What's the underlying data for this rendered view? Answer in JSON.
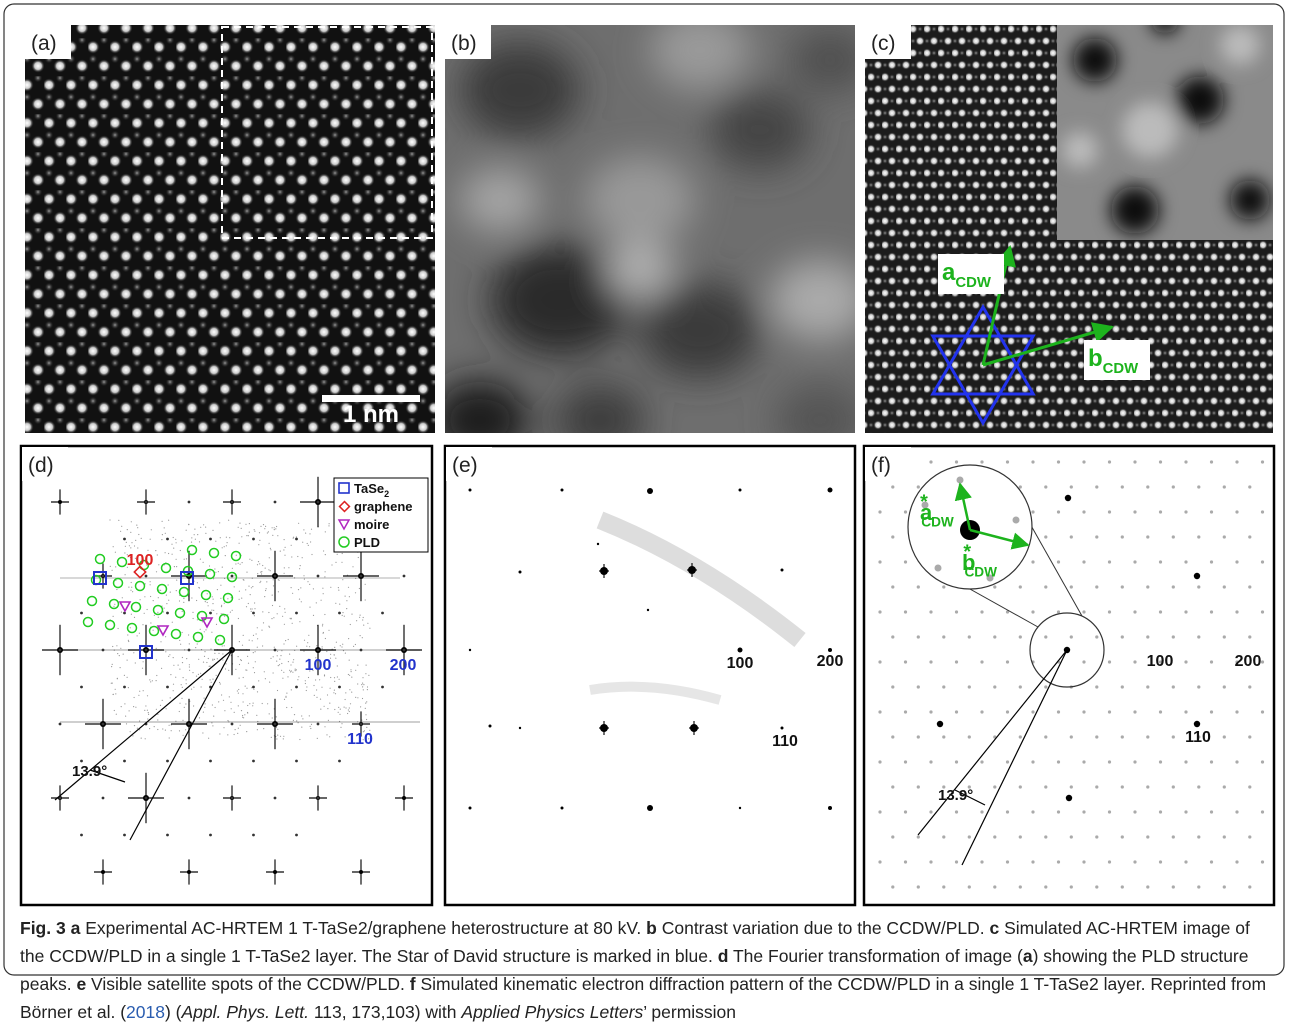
{
  "panels": {
    "a": {
      "label": "(a)",
      "scale_bar": "1 nm"
    },
    "b": {
      "label": "(b)"
    },
    "c": {
      "label": "(c)",
      "vector_a": {
        "main": "a",
        "sub": "CDW"
      },
      "vector_b": {
        "main": "b",
        "sub": "CDW"
      }
    },
    "d": {
      "label": "(d)",
      "legend": [
        {
          "name": "TaSe",
          "sub": "2"
        },
        {
          "name": "graphene"
        },
        {
          "name": "moire"
        },
        {
          "name": "PLD"
        }
      ],
      "graphene_index": "100",
      "indices": [
        "100",
        "200",
        "110"
      ],
      "angle": "13.9°"
    },
    "e": {
      "label": "(e)",
      "indices": [
        "100",
        "200",
        "110"
      ]
    },
    "f": {
      "label": "(f)",
      "vector_a": {
        "main": "a",
        "sup": "*",
        "sub": "CDW"
      },
      "vector_b": {
        "main": "b",
        "sup": "*",
        "sub": "CDW"
      },
      "indices": [
        "100",
        "200",
        "110"
      ],
      "angle": "13.9°"
    }
  },
  "caption": [
    "Fig. 3",
    "a",
    "Experimental AC-HRTEM 1 T-TaSe2/graphene heterostructure at 80 kV.",
    "b",
    "Contrast variation due to the CCDW/PLD.",
    "c",
    "Simulated AC-HRTEM image of the CCDW/PLD in a single 1 T-TaSe2 layer. The Star of David structure is marked in blue.",
    "d",
    "The Fourier transformation of image (",
    "a",
    ") showing the PLD structure peaks.",
    "e",
    "Visible satellite spots of the CCDW/PLD.",
    "f",
    "Simulated kinematic electron diffraction pattern of the CCDW/PLD in a single 1 T-TaSe2 layer. Reprinted from Börner et al. (",
    "2018",
    ") (",
    "Appl. Phys. Lett.",
    "113, 173,103) with",
    "Applied Physics Letters",
    "’ permission"
  ]
}
